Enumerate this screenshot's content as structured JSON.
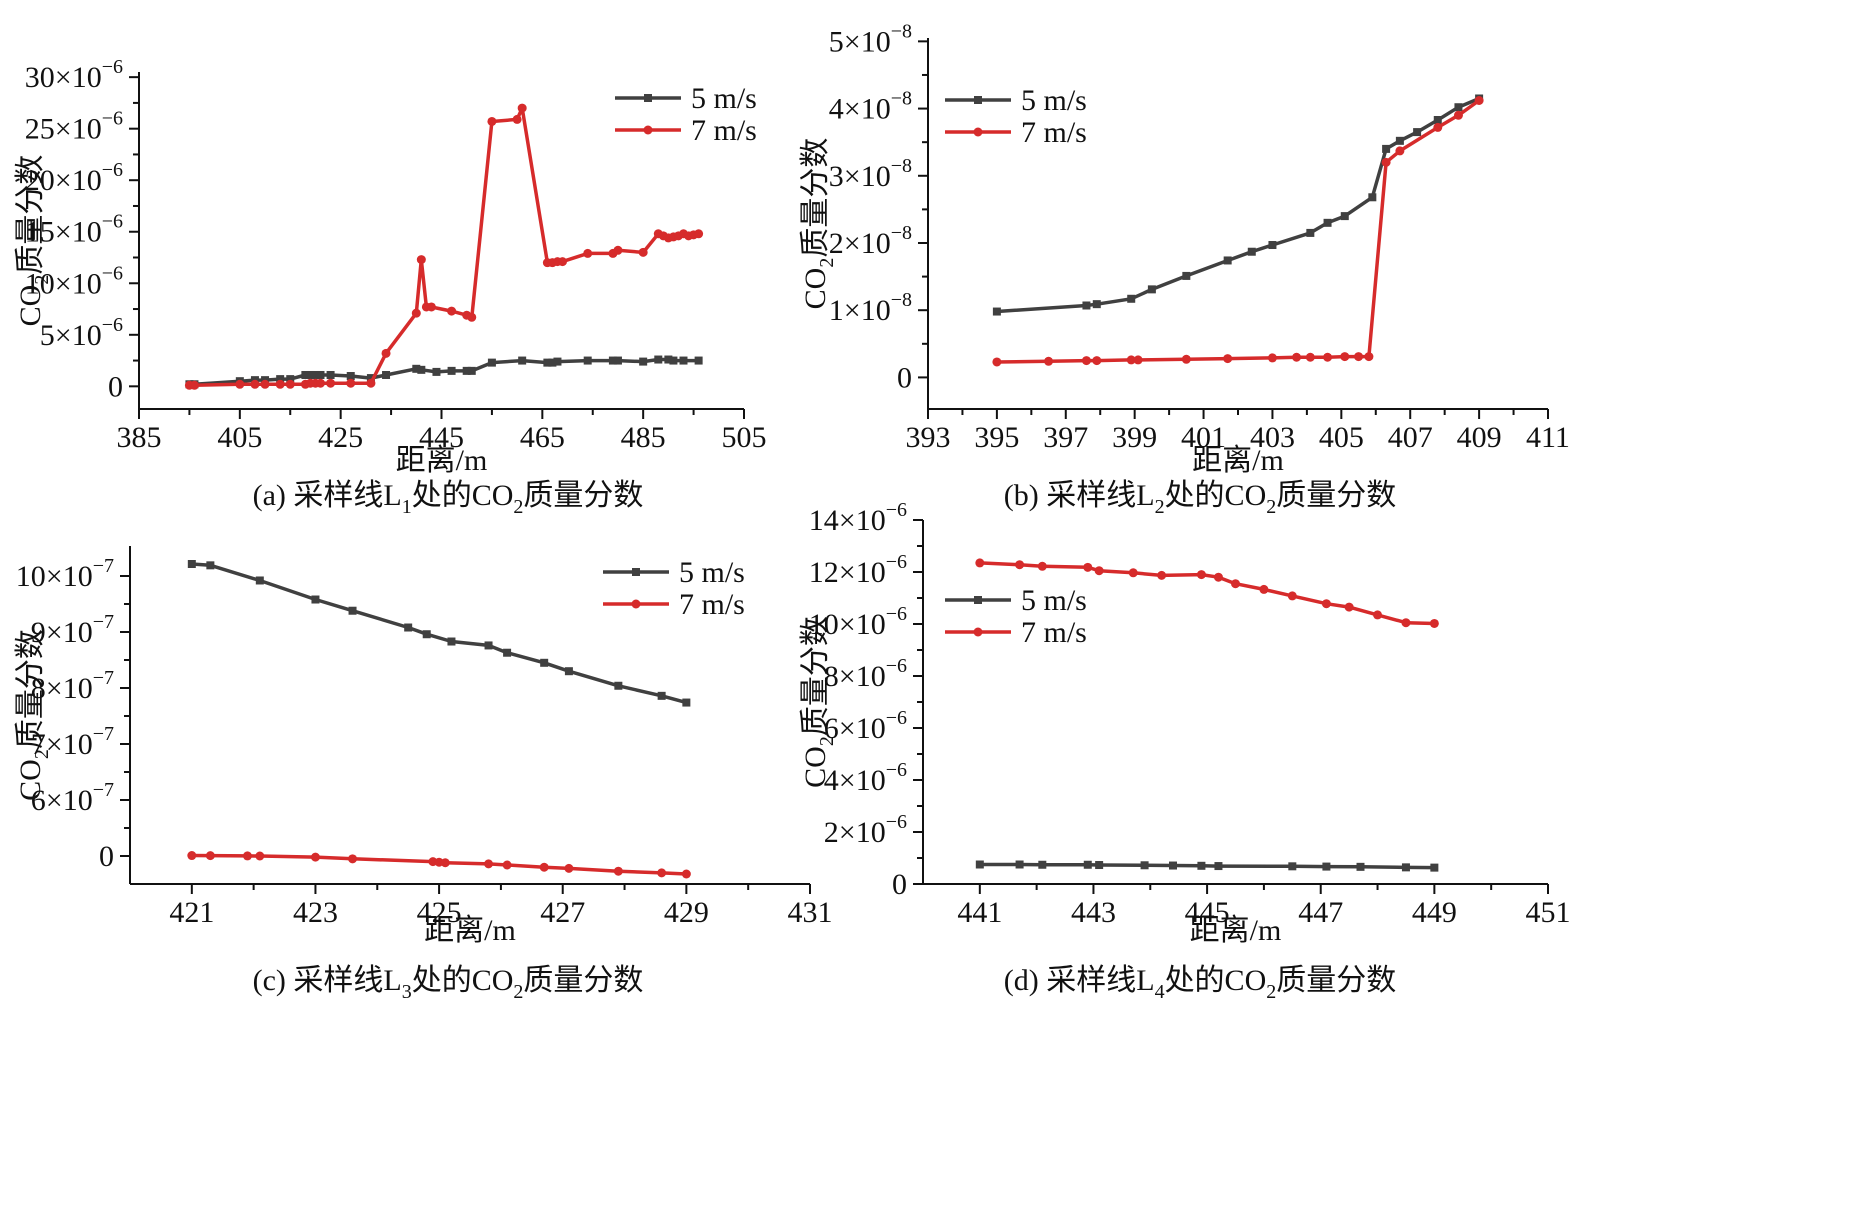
{
  "colors": {
    "series_5": "#404040",
    "series_7": "#d62b2b",
    "axis": "#111111"
  },
  "chart_data": [
    {
      "id": "a",
      "type": "line",
      "caption": "(a) 采样线L1处的CO2质量分数",
      "caption_parts": [
        "(a) 采样线L",
        "1",
        "处的CO",
        "2",
        "质量分数"
      ],
      "xlabel": "距离/m",
      "ylabel_parts": [
        "CO",
        "2",
        "质量分数"
      ],
      "xlim": [
        385,
        505
      ],
      "ylim": [
        -2.2,
        30.5
      ],
      "x_ticks": [
        385,
        405,
        425,
        445,
        465,
        485,
        505
      ],
      "y_ticks": [
        {
          "value": 0,
          "mant": "0",
          "exp": ""
        },
        {
          "value": 5,
          "mant": "5×10",
          "exp": "−6"
        },
        {
          "value": 10,
          "mant": "10×10",
          "exp": "−6"
        },
        {
          "value": 15,
          "mant": "15×10",
          "exp": "−6"
        },
        {
          "value": 20,
          "mant": "20×10",
          "exp": "−6"
        },
        {
          "value": 25,
          "mant": "25×10",
          "exp": "−6"
        },
        {
          "value": 30,
          "mant": "30×10",
          "exp": "−6"
        }
      ],
      "legend_pos": "top-right",
      "series": [
        {
          "name": "5 m/s",
          "color_key": "series_5",
          "marker": "square",
          "x": [
            395,
            396,
            405,
            408,
            410,
            413,
            415,
            418,
            419,
            420,
            421,
            423,
            427,
            431,
            434,
            440,
            441,
            444,
            447,
            450,
            451,
            455,
            461,
            466,
            467,
            468,
            474,
            479,
            480,
            485,
            488,
            490,
            491,
            493,
            496
          ],
          "y": [
            0.2,
            0.2,
            0.5,
            0.6,
            0.6,
            0.7,
            0.7,
            1.1,
            1.1,
            1.1,
            1.1,
            1.1,
            1.0,
            0.8,
            1.1,
            1.7,
            1.6,
            1.4,
            1.5,
            1.5,
            1.5,
            2.3,
            2.5,
            2.3,
            2.3,
            2.4,
            2.5,
            2.5,
            2.5,
            2.4,
            2.6,
            2.6,
            2.5,
            2.5,
            2.5
          ]
        },
        {
          "name": "7 m/s",
          "color_key": "series_7",
          "marker": "circle",
          "x": [
            395,
            396,
            405,
            408,
            410,
            413,
            415,
            418,
            419,
            420,
            421,
            423,
            427,
            431,
            434,
            440,
            441,
            442,
            443,
            447,
            450,
            451,
            455,
            460,
            461,
            466,
            467,
            468,
            469,
            474,
            479,
            480,
            485,
            488,
            489,
            490,
            491,
            492,
            493,
            494,
            495,
            496
          ],
          "y": [
            0.1,
            0.1,
            0.2,
            0.2,
            0.2,
            0.2,
            0.2,
            0.2,
            0.3,
            0.3,
            0.3,
            0.3,
            0.3,
            0.3,
            3.2,
            7.1,
            12.3,
            7.7,
            7.7,
            7.3,
            6.9,
            6.7,
            25.7,
            25.9,
            27.0,
            12.0,
            12.0,
            12.1,
            12.1,
            12.9,
            12.9,
            13.2,
            13.0,
            14.8,
            14.6,
            14.4,
            14.5,
            14.6,
            14.8,
            14.6,
            14.7,
            14.8
          ]
        }
      ]
    },
    {
      "id": "b",
      "type": "line",
      "caption": "(b) 采样线L2处的CO2质量分数",
      "caption_parts": [
        "(b) 采样线L",
        "2",
        "处的CO",
        "2",
        "质量分数"
      ],
      "xlabel": "距离/m",
      "ylabel_parts": [
        "CO",
        "2",
        "质量分数"
      ],
      "xlim": [
        393,
        411
      ],
      "ylim": [
        -0.47,
        5.05
      ],
      "x_ticks": [
        393,
        395,
        397,
        399,
        401,
        403,
        405,
        407,
        409,
        411
      ],
      "y_ticks": [
        {
          "value": 0,
          "mant": "0",
          "exp": ""
        },
        {
          "value": 1,
          "mant": "1×10",
          "exp": "−8"
        },
        {
          "value": 2,
          "mant": "2×10",
          "exp": "−8"
        },
        {
          "value": 3,
          "mant": "3×10",
          "exp": "−8"
        },
        {
          "value": 4,
          "mant": "4×10",
          "exp": "−8"
        },
        {
          "value": 5,
          "mant": "5×10",
          "exp": "−8"
        }
      ],
      "legend_pos": "top-left",
      "series": [
        {
          "name": "5 m/s",
          "color_key": "series_5",
          "marker": "square",
          "x": [
            395,
            397.6,
            397.9,
            398.9,
            399.5,
            400.5,
            401.7,
            402.4,
            403,
            404.1,
            404.6,
            405.1,
            405.9,
            406.3,
            406.7,
            407.2,
            407.8,
            408.4,
            409
          ],
          "y": [
            0.98,
            1.07,
            1.09,
            1.17,
            1.31,
            1.51,
            1.74,
            1.87,
            1.97,
            2.15,
            2.3,
            2.4,
            2.68,
            3.4,
            3.52,
            3.65,
            3.83,
            4.02,
            4.15
          ]
        },
        {
          "name": "7 m/s",
          "color_key": "series_7",
          "marker": "circle",
          "x": [
            395,
            396.5,
            397.6,
            397.9,
            398.9,
            399.1,
            400.5,
            401.7,
            403,
            403.7,
            404.1,
            404.6,
            405.1,
            405.5,
            405.8,
            406.3,
            406.7,
            407.8,
            408.4,
            409
          ],
          "y": [
            0.23,
            0.24,
            0.25,
            0.25,
            0.26,
            0.26,
            0.27,
            0.28,
            0.29,
            0.3,
            0.3,
            0.3,
            0.31,
            0.31,
            0.31,
            3.2,
            3.37,
            3.72,
            3.9,
            4.12
          ]
        }
      ]
    },
    {
      "id": "c",
      "type": "line",
      "caption": "(c) 采样线L3处的CO2质量分数",
      "caption_parts": [
        "(c) 采样线L",
        "3",
        "处的CO",
        "2",
        "质量分数"
      ],
      "xlabel": "距离/m",
      "ylabel_parts": [
        "CO",
        "2",
        "质量分数"
      ],
      "xlim": [
        420,
        431
      ],
      "ylim": [
        -0.52,
        10.8
      ],
      "x_ticks": [
        421,
        423,
        425,
        427,
        429,
        431
      ],
      "y_ticks": [
        {
          "value": 0,
          "mant": "0",
          "exp": ""
        },
        {
          "value": 6,
          "mant": "6×10",
          "exp": "−7"
        },
        {
          "value": 7,
          "mant": "7×10",
          "exp": "−7"
        },
        {
          "value": 8,
          "mant": "8×10",
          "exp": "−7"
        },
        {
          "value": 9,
          "mant": "9×10",
          "exp": "−7"
        },
        {
          "value": 10,
          "mant": "10×10",
          "exp": "−7"
        }
      ],
      "y_break_note": "axis labels jump from 0 to 6×10−7; values mapped per visible tick positions",
      "legend_pos": "top-right",
      "series": [
        {
          "name": "5 m/s",
          "color_key": "series_5",
          "marker": "square",
          "x": [
            421,
            421.3,
            422.1,
            423,
            423.6,
            424.5,
            424.8,
            425.2,
            425.8,
            426.1,
            426.7,
            427.1,
            427.9,
            428.6,
            429
          ],
          "y": [
            10.18,
            10.16,
            9.92,
            9.58,
            9.38,
            9.08,
            8.96,
            8.83,
            8.76,
            8.63,
            8.45,
            8.3,
            8.04,
            7.86,
            7.74
          ]
        },
        {
          "name": "7 m/s",
          "color_key": "series_7",
          "marker": "circle",
          "x": [
            421,
            421.3,
            421.9,
            422.1,
            423,
            423.6,
            424.9,
            425,
            425.1,
            425.8,
            426.1,
            426.7,
            427.1,
            427.9,
            428.6,
            429
          ],
          "y": [
            0.05,
            0.04,
            0.01,
            0.0,
            -0.02,
            -0.05,
            -0.1,
            -0.11,
            -0.12,
            -0.14,
            -0.16,
            -0.2,
            -0.22,
            -0.27,
            -0.3,
            -0.32
          ]
        }
      ]
    },
    {
      "id": "d",
      "type": "line",
      "caption": "(d) 采样线L4处的CO2质量分数",
      "caption_parts": [
        "(d) 采样线L",
        "4",
        "处的CO",
        "2",
        "质量分数"
      ],
      "xlabel": "距离/m",
      "ylabel_parts": [
        "CO",
        "2",
        "质量分数"
      ],
      "xlim": [
        440,
        451
      ],
      "ylim": [
        0,
        14
      ],
      "x_ticks": [
        441,
        443,
        445,
        447,
        449,
        451
      ],
      "y_ticks": [
        {
          "value": 0,
          "mant": "0",
          "exp": ""
        },
        {
          "value": 2,
          "mant": "2×10",
          "exp": "−6"
        },
        {
          "value": 4,
          "mant": "4×10",
          "exp": "−6"
        },
        {
          "value": 6,
          "mant": "6×10",
          "exp": "−6"
        },
        {
          "value": 8,
          "mant": "8×10",
          "exp": "−6"
        },
        {
          "value": 10,
          "mant": "10×10",
          "exp": "−6"
        },
        {
          "value": 12,
          "mant": "12×10",
          "exp": "−6"
        },
        {
          "value": 14,
          "mant": "14×10",
          "exp": "−6"
        }
      ],
      "legend_pos": "top-left",
      "series": [
        {
          "name": "5 m/s",
          "color_key": "series_5",
          "marker": "square",
          "x": [
            441,
            441.7,
            442.1,
            442.9,
            443.1,
            443.9,
            444.4,
            444.9,
            445.2,
            446.5,
            447.1,
            447.7,
            448.5,
            449
          ],
          "y": [
            0.75,
            0.75,
            0.74,
            0.74,
            0.73,
            0.72,
            0.71,
            0.7,
            0.69,
            0.68,
            0.67,
            0.66,
            0.64,
            0.63
          ]
        },
        {
          "name": "7 m/s",
          "color_key": "series_7",
          "marker": "circle",
          "x": [
            441,
            441.7,
            442.1,
            442.9,
            443.1,
            443.7,
            444.2,
            444.9,
            445.2,
            445.5,
            446,
            446.5,
            447.1,
            447.5,
            448,
            448.5,
            449
          ],
          "y": [
            12.35,
            12.28,
            12.22,
            12.18,
            12.05,
            11.97,
            11.87,
            11.9,
            11.8,
            11.55,
            11.33,
            11.08,
            10.78,
            10.65,
            10.35,
            10.05,
            10.02
          ]
        }
      ]
    }
  ]
}
